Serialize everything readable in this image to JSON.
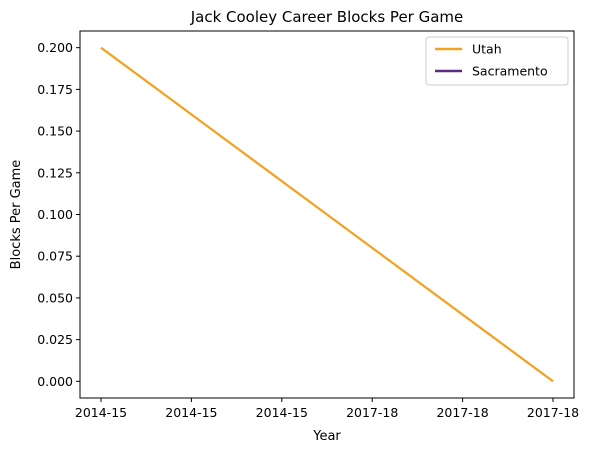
{
  "chart_data": {
    "type": "line",
    "title": "Jack Cooley Career Blocks Per Game",
    "xlabel": "Year",
    "ylabel": "Blocks Per Game",
    "x_tick_labels": [
      "2014-15",
      "2014-15",
      "2014-15",
      "2017-18",
      "2017-18",
      "2017-18"
    ],
    "y_ticks": [
      0.0,
      0.025,
      0.05,
      0.075,
      0.1,
      0.125,
      0.15,
      0.175,
      0.2
    ],
    "y_tick_labels": [
      "0.000",
      "0.025",
      "0.050",
      "0.075",
      "0.100",
      "0.125",
      "0.150",
      "0.175",
      "0.200"
    ],
    "ylim": [
      -0.01,
      0.21
    ],
    "grid": false,
    "legend_position": "top-right",
    "series": [
      {
        "name": "Utah",
        "color": "#f4a020",
        "x": [
          "2014-15",
          "2017-18"
        ],
        "values": [
          0.2,
          0.0
        ]
      },
      {
        "name": "Sacramento",
        "color": "#5a2d81",
        "x": [],
        "values": []
      }
    ]
  }
}
